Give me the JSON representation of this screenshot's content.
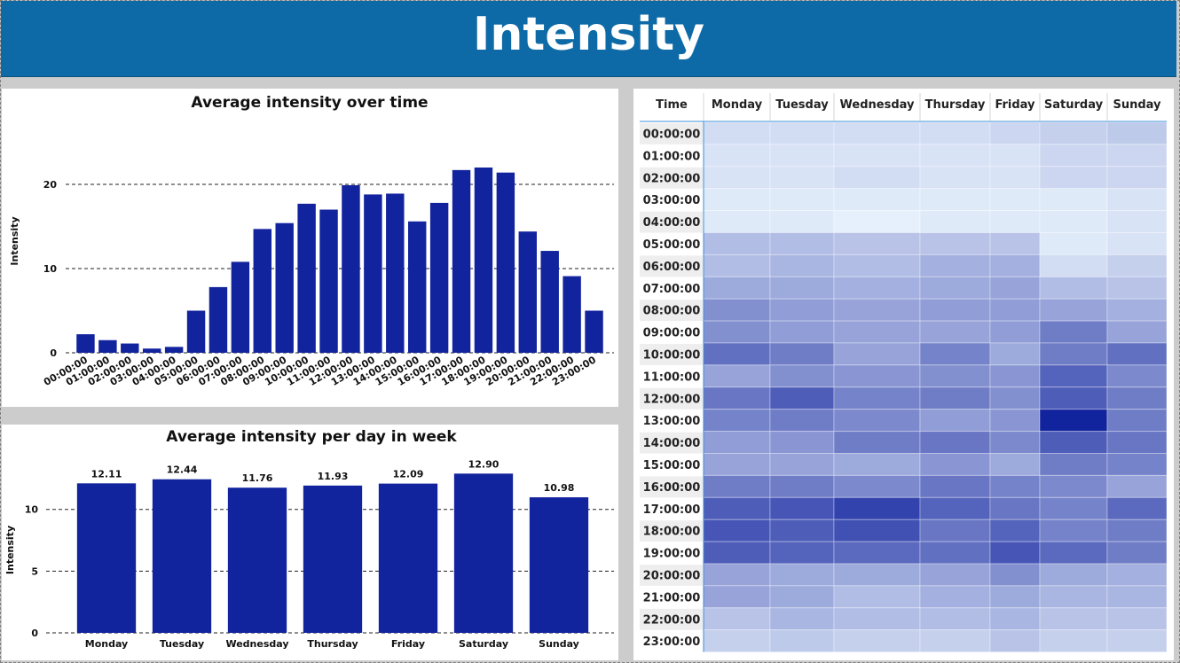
{
  "header": {
    "title": "Intensity"
  },
  "chart_data": [
    {
      "type": "bar",
      "title": "Average intensity over time",
      "xlabel": "",
      "ylabel": "Intensity",
      "ylim": [
        0,
        24
      ],
      "yticks": [
        0,
        10,
        20
      ],
      "grid": "horizontal dashed",
      "color": "#12239e",
      "categories": [
        "00:00:00",
        "01:00:00",
        "02:00:00",
        "03:00:00",
        "04:00:00",
        "05:00:00",
        "06:00:00",
        "07:00:00",
        "08:00:00",
        "09:00:00",
        "10:00:00",
        "11:00:00",
        "12:00:00",
        "13:00:00",
        "14:00:00",
        "15:00:00",
        "16:00:00",
        "17:00:00",
        "18:00:00",
        "19:00:00",
        "20:00:00",
        "21:00:00",
        "22:00:00",
        "23:00:00"
      ],
      "values": [
        2.2,
        1.5,
        1.1,
        0.5,
        0.7,
        5.0,
        7.8,
        10.8,
        14.7,
        15.4,
        17.7,
        17.0,
        19.9,
        18.8,
        18.9,
        15.6,
        17.8,
        21.7,
        22.0,
        21.4,
        14.4,
        12.1,
        9.1,
        5.0
      ]
    },
    {
      "type": "bar",
      "title": "Average intensity per day in week",
      "xlabel": "",
      "ylabel": "Intensity",
      "ylim": [
        0,
        14
      ],
      "yticks": [
        0,
        5,
        10
      ],
      "grid": "horizontal dashed",
      "color": "#12239e",
      "categories": [
        "Monday",
        "Tuesday",
        "Wednesday",
        "Thursday",
        "Friday",
        "Saturday",
        "Sunday"
      ],
      "values": [
        12.11,
        12.44,
        11.76,
        11.93,
        12.09,
        12.9,
        10.98
      ],
      "data_labels": [
        "12.11",
        "12.44",
        "11.76",
        "11.93",
        "12.09",
        "12.90",
        "10.98"
      ]
    },
    {
      "type": "heatmap",
      "row_header": "Time",
      "columns": [
        "Monday",
        "Tuesday",
        "Wednesday",
        "Thursday",
        "Friday",
        "Saturday",
        "Sunday"
      ],
      "rows": [
        "00:00:00",
        "01:00:00",
        "02:00:00",
        "03:00:00",
        "04:00:00",
        "05:00:00",
        "06:00:00",
        "07:00:00",
        "08:00:00",
        "09:00:00",
        "10:00:00",
        "11:00:00",
        "12:00:00",
        "13:00:00",
        "14:00:00",
        "15:00:00",
        "16:00:00",
        "17:00:00",
        "18:00:00",
        "19:00:00",
        "20:00:00",
        "21:00:00",
        "22:00:00",
        "23:00:00"
      ],
      "color_scale": [
        "#e6f0fc",
        "#12239e"
      ],
      "values": [
        [
          3,
          3,
          3,
          3,
          4,
          5,
          6
        ],
        [
          2,
          2,
          2,
          2,
          2,
          4,
          4
        ],
        [
          2,
          2,
          3,
          2,
          2,
          4,
          4
        ],
        [
          1,
          1,
          1,
          1,
          1,
          1,
          2
        ],
        [
          1,
          1,
          0,
          1,
          1,
          1,
          2
        ],
        [
          8,
          8,
          7,
          7,
          7,
          1,
          2
        ],
        [
          8,
          9,
          8,
          10,
          10,
          3,
          5
        ],
        [
          11,
          11,
          10,
          11,
          12,
          8,
          7
        ],
        [
          15,
          13,
          12,
          13,
          13,
          12,
          10
        ],
        [
          15,
          13,
          12,
          12,
          13,
          18,
          12
        ],
        [
          20,
          18,
          12,
          17,
          11,
          18,
          20
        ],
        [
          12,
          15,
          14,
          15,
          14,
          22,
          16
        ],
        [
          19,
          23,
          17,
          18,
          15,
          23,
          18
        ],
        [
          17,
          18,
          16,
          13,
          14,
          32,
          18
        ],
        [
          13,
          14,
          18,
          19,
          16,
          23,
          19
        ],
        [
          12,
          12,
          11,
          14,
          11,
          18,
          17
        ],
        [
          18,
          18,
          16,
          19,
          17,
          16,
          12
        ],
        [
          23,
          24,
          27,
          22,
          19,
          17,
          21
        ],
        [
          24,
          23,
          25,
          19,
          22,
          17,
          18
        ],
        [
          23,
          22,
          21,
          20,
          24,
          21,
          18
        ],
        [
          12,
          11,
          11,
          12,
          15,
          11,
          10
        ],
        [
          12,
          11,
          8,
          10,
          11,
          9,
          9
        ],
        [
          7,
          9,
          8,
          8,
          9,
          7,
          7
        ],
        [
          5,
          6,
          5,
          5,
          7,
          5,
          5
        ]
      ],
      "vmin": 0,
      "vmax": 32
    }
  ]
}
